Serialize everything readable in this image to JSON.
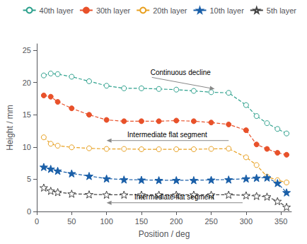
{
  "chart_data": {
    "type": "line",
    "x_label": "Position / deg",
    "y_label": "Height / mm",
    "xlim": [
      0,
      365
    ],
    "ylim": [
      0,
      26
    ],
    "xticks": [
      0,
      50,
      100,
      150,
      200,
      250,
      300,
      350
    ],
    "yticks": [
      0,
      5,
      10,
      15,
      20,
      25
    ],
    "grid": false,
    "legend": "upper right",
    "x": [
      10,
      20,
      30,
      50,
      75,
      100,
      125,
      150,
      175,
      200,
      225,
      250,
      275,
      300,
      315,
      330,
      345,
      358
    ],
    "series": [
      {
        "name": "40th layer",
        "color": "#2ca08c",
        "marker": "circle-open",
        "line_style": "dashed",
        "values": [
          21.1,
          21.4,
          21.3,
          20.9,
          20.2,
          19.5,
          19.1,
          19.1,
          19.0,
          18.9,
          18.7,
          18.5,
          18.4,
          16.5,
          14.8,
          13.7,
          12.8,
          12.1
        ]
      },
      {
        "name": "30th layer",
        "color": "#e8512a",
        "marker": "circle",
        "line_style": "dashed",
        "values": [
          18.0,
          17.8,
          17.0,
          16.0,
          15.0,
          14.2,
          14.0,
          14.0,
          14.0,
          14.1,
          14.0,
          13.8,
          13.5,
          12.6,
          10.4,
          9.7,
          9.1,
          8.8
        ]
      },
      {
        "name": "20th layer",
        "color": "#e8a020",
        "marker": "circle-open",
        "line_style": "dashed",
        "values": [
          11.5,
          10.5,
          10.2,
          9.95,
          9.8,
          9.7,
          9.7,
          9.65,
          9.65,
          9.65,
          9.65,
          9.7,
          9.75,
          8.4,
          7.2,
          5.4,
          4.85,
          4.5
        ]
      },
      {
        "name": "10th layer",
        "color": "#1a5fa8",
        "marker": "star",
        "line_style": "dashed",
        "values": [
          6.9,
          6.6,
          6.3,
          5.9,
          5.5,
          5.1,
          4.95,
          4.9,
          4.85,
          4.85,
          4.85,
          4.9,
          4.95,
          5.1,
          5.2,
          5.25,
          4.4,
          2.95
        ]
      },
      {
        "name": "5th layer",
        "color": "#444444",
        "marker": "star-open",
        "line_style": "dashed",
        "values": [
          3.7,
          3.2,
          3.0,
          2.75,
          2.65,
          2.6,
          2.6,
          2.6,
          2.6,
          2.6,
          2.6,
          2.6,
          2.6,
          2.5,
          2.4,
          2.3,
          1.6,
          0.7
        ]
      }
    ],
    "annotations": [
      {
        "text": "Continuous decline",
        "x": 163,
        "y": 21.0,
        "arrow": {
          "from": [
            165,
            20.8
          ],
          "to": [
            255,
            19.0
          ]
        }
      },
      {
        "text": "Intermediate flat segment",
        "x": 187,
        "y": 11.3,
        "arrow": {
          "from": [
            275,
            11.0
          ],
          "to": [
            100,
            11.0
          ]
        }
      },
      {
        "text": "Intermediate flat segment",
        "x": 197,
        "y": 1.65,
        "arrow": {
          "from": [
            295,
            1.35
          ],
          "to": [
            100,
            1.35
          ]
        }
      }
    ]
  }
}
